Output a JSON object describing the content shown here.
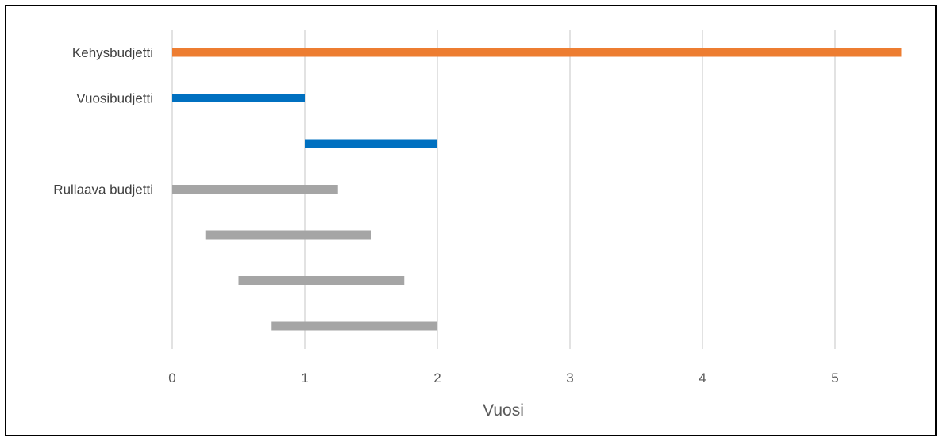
{
  "chart_data": {
    "type": "bar",
    "subtype": "floating-horizontal-bar",
    "title": "",
    "xlabel": "Vuosi",
    "ylabel": "",
    "xlim": [
      0,
      5.5
    ],
    "xticks": [
      "0",
      "1",
      "2",
      "3",
      "4",
      "5"
    ],
    "grid": "vertical",
    "legend": "none",
    "row_labels": [
      "Kehysbudjetti",
      "Vuosibudjetti",
      "",
      "Rullaava budjetti",
      "",
      "",
      ""
    ],
    "bars": [
      {
        "category": "Kehysbudjetti",
        "start": 0,
        "end": 5.5,
        "color": "#ED7D31"
      },
      {
        "category": "Vuosibudjetti",
        "start": 0,
        "end": 1,
        "color": "#0070C0"
      },
      {
        "category": "Vuosibudjetti",
        "start": 1,
        "end": 2,
        "color": "#0070C0"
      },
      {
        "category": "Rullaava budjetti",
        "start": 0,
        "end": 1.25,
        "color": "#A5A5A5"
      },
      {
        "category": "Rullaava budjetti",
        "start": 0.25,
        "end": 1.5,
        "color": "#A5A5A5"
      },
      {
        "category": "Rullaava budjetti",
        "start": 0.5,
        "end": 1.75,
        "color": "#A5A5A5"
      },
      {
        "category": "Rullaava budjetti",
        "start": 0.75,
        "end": 2,
        "color": "#A5A5A5"
      }
    ]
  }
}
